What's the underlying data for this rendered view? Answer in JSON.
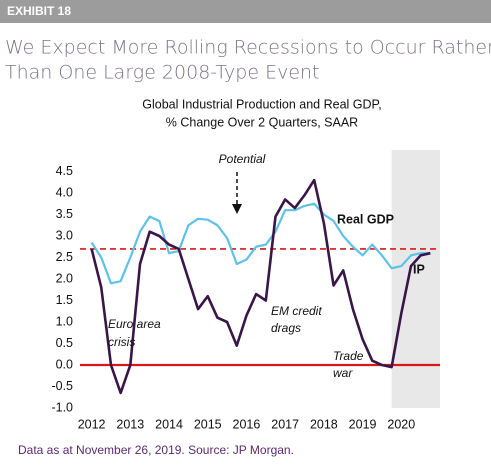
{
  "header": "EXHIBIT 18",
  "title": [
    "We Expect More Rolling Recessions to Occur Rather",
    "Than One Large 2008-Type Event"
  ],
  "footer": "Data as at November 26, 2019. Source: JP Morgan.",
  "chart_data": {
    "type": "line",
    "subtitle": [
      "Global Industrial Production and Real GDP,",
      "% Change Over 2 Quarters, SAAR"
    ],
    "x": [
      2012,
      2012.25,
      2012.5,
      2012.75,
      2013,
      2013.25,
      2013.5,
      2013.75,
      2014,
      2014.25,
      2014.5,
      2014.75,
      2015,
      2015.25,
      2015.5,
      2015.75,
      2016,
      2016.25,
      2016.5,
      2016.75,
      2017,
      2017.25,
      2017.5,
      2017.75,
      2018,
      2018.25,
      2018.5,
      2018.75,
      2019,
      2019.25,
      2019.5,
      2019.75,
      2020,
      2020.25,
      2020.5,
      2020.75
    ],
    "series": [
      {
        "name": "Real GDP",
        "color": "#5cc3e6",
        "values": [
          2.85,
          2.5,
          1.9,
          1.95,
          2.5,
          3.1,
          3.45,
          3.35,
          2.6,
          2.65,
          3.25,
          3.4,
          3.38,
          3.25,
          2.95,
          2.35,
          2.45,
          2.75,
          2.8,
          3.1,
          3.6,
          3.6,
          3.7,
          3.75,
          3.5,
          3.35,
          3.0,
          2.75,
          2.55,
          2.8,
          2.55,
          2.25,
          2.3,
          2.55,
          2.6,
          2.6
        ]
      },
      {
        "name": "IP",
        "color": "#3a1648",
        "values": [
          2.7,
          1.8,
          0.0,
          -0.65,
          0.0,
          2.35,
          3.1,
          3.0,
          2.8,
          2.7,
          2.0,
          1.3,
          1.6,
          1.1,
          1.0,
          0.45,
          1.15,
          1.65,
          1.5,
          3.45,
          3.85,
          3.65,
          3.95,
          4.3,
          3.3,
          1.85,
          2.2,
          1.3,
          0.6,
          0.1,
          0.0,
          -0.05,
          1.2,
          2.3,
          2.55,
          2.6
        ]
      }
    ],
    "reference_lines": [
      {
        "value": 2.7,
        "color": "#d7191c",
        "dashed": true
      },
      {
        "value": 0,
        "color": "#d7191c",
        "dashed": false
      }
    ],
    "shade": [
      2019.75,
      2021.0
    ],
    "shade_color": "#e8e8e8",
    "annotations": [
      "Potential",
      "Euro area",
      "crisis",
      "EM credit",
      "drags",
      "Trade",
      "war"
    ],
    "xlim": [
      2011.7,
      2021.0
    ],
    "xticks": [
      2012,
      2013,
      2014,
      2015,
      2016,
      2017,
      2018,
      2019,
      2020
    ],
    "ylim": [
      -1,
      5
    ],
    "yticks": [
      {
        "value": -1,
        "label": "-1.0"
      },
      -0.5,
      {
        "value": 0,
        "label": "0.0"
      },
      0.5,
      {
        "value": 1,
        "label": "1.0"
      },
      1.5,
      {
        "value": 2,
        "label": "2.0"
      },
      2.5,
      {
        "value": 3,
        "label": "3.0"
      },
      3.5,
      {
        "value": 4,
        "label": "4.0"
      },
      4.5
    ]
  }
}
